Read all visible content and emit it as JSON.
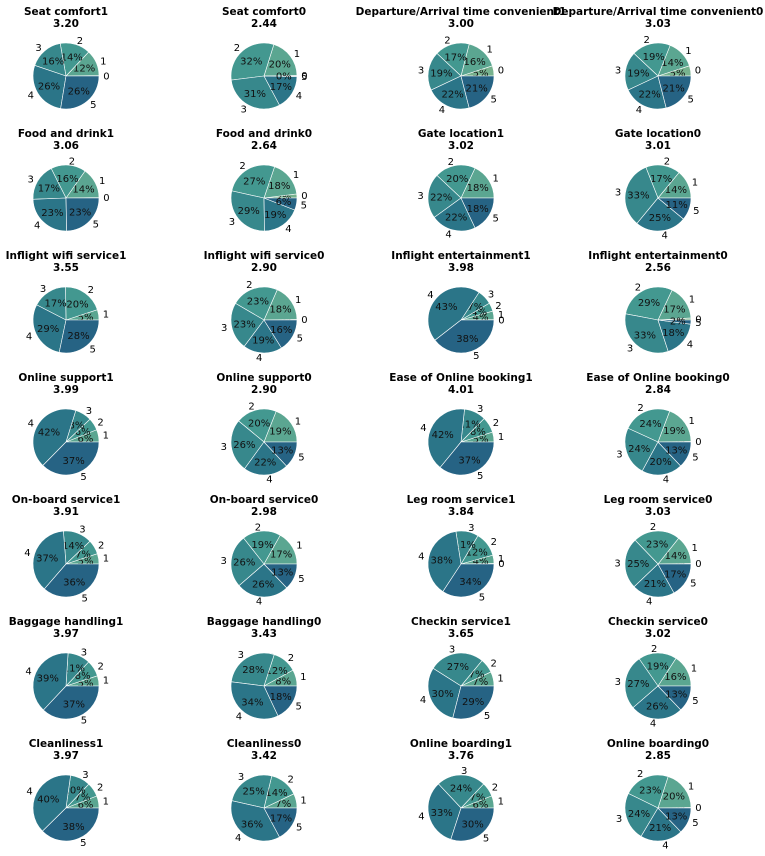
{
  "palette": [
    "#77b28e",
    "#5ba691",
    "#439890",
    "#37888c",
    "#2b7588",
    "#266384",
    "#244f7e"
  ],
  "category_order": [
    "0",
    "1",
    "2",
    "3",
    "4",
    "5"
  ],
  "chart_data": [
    {
      "type": "pie",
      "title": "Seat comfort1",
      "subtitle": "3.20",
      "labels": [
        "0",
        "1",
        "2",
        "3",
        "4",
        "5"
      ],
      "values": [
        0.2,
        12,
        14,
        16,
        26,
        26
      ],
      "pct_labels": [
        "",
        "12%",
        "14%",
        "16%",
        "26%",
        "26%"
      ]
    },
    {
      "type": "pie",
      "title": "Seat comfort0",
      "subtitle": "2.44",
      "labels": [
        "0",
        "1",
        "2",
        "3",
        "4",
        "5"
      ],
      "values": [
        0.3,
        20,
        32,
        31,
        17,
        0.3
      ],
      "pct_labels": [
        "0%",
        "20%",
        "32%",
        "31%",
        "17%",
        "0%"
      ]
    },
    {
      "type": "pie",
      "title": "Departure/Arrival time convenient1",
      "subtitle": "3.00",
      "labels": [
        "0",
        "1",
        "2",
        "3",
        "4",
        "5"
      ],
      "values": [
        5,
        16,
        17,
        19,
        22,
        21
      ],
      "pct_labels": [
        "5%",
        "16%",
        "17%",
        "19%",
        "22%",
        "21%"
      ]
    },
    {
      "type": "pie",
      "title": "Departure/Arrival time convenient0",
      "subtitle": "3.03",
      "labels": [
        "0",
        "1",
        "2",
        "3",
        "4",
        "5"
      ],
      "values": [
        5,
        14,
        19,
        19,
        22,
        21
      ],
      "pct_labels": [
        "5%",
        "14%",
        "19%",
        "19%",
        "22%",
        "21%"
      ]
    },
    {
      "type": "pie",
      "title": "Food and drink1",
      "subtitle": "3.06",
      "labels": [
        "0",
        "1",
        "2",
        "3",
        "4",
        "5"
      ],
      "values": [
        0.2,
        14,
        16,
        17,
        23,
        23
      ],
      "pct_labels": [
        "",
        "14%",
        "16%",
        "17%",
        "23%",
        "23%"
      ]
    },
    {
      "type": "pie",
      "title": "Food and drink0",
      "subtitle": "2.64",
      "labels": [
        "0",
        "1",
        "2",
        "3",
        "4",
        "5"
      ],
      "values": [
        2,
        18,
        27,
        29,
        19,
        6
      ],
      "pct_labels": [
        "2%",
        "18%",
        "27%",
        "29%",
        "19%",
        "6%"
      ]
    },
    {
      "type": "pie",
      "title": "Gate location1",
      "subtitle": "3.02",
      "labels": [
        "1",
        "2",
        "3",
        "4",
        "5"
      ],
      "values": [
        18,
        20,
        22,
        22,
        18
      ],
      "pct_labels": [
        "18%",
        "20%",
        "22%",
        "22%",
        "18%"
      ]
    },
    {
      "type": "pie",
      "title": "Gate location0",
      "subtitle": "3.01",
      "labels": [
        "1",
        "2",
        "3",
        "4",
        "5"
      ],
      "values": [
        14,
        17,
        33,
        25,
        11
      ],
      "pct_labels": [
        "14%",
        "17%",
        "33%",
        "25%",
        "11%"
      ]
    },
    {
      "type": "pie",
      "title": "Inflight wifi service1",
      "subtitle": "3.55",
      "labels": [
        "1",
        "2",
        "3",
        "4",
        "5"
      ],
      "values": [
        5,
        20,
        17,
        29,
        28
      ],
      "pct_labels": [
        "5%",
        "20%",
        "17%",
        "29%",
        "28%"
      ]
    },
    {
      "type": "pie",
      "title": "Inflight wifi service0",
      "subtitle": "2.90",
      "labels": [
        "0",
        "1",
        "2",
        "3",
        "4",
        "5"
      ],
      "values": [
        0.3,
        18,
        23,
        23,
        19,
        16
      ],
      "pct_labels": [
        "0%",
        "18%",
        "23%",
        "23%",
        "19%",
        "16%"
      ]
    },
    {
      "type": "pie",
      "title": "Inflight entertainment1",
      "subtitle": "3.98",
      "labels": [
        "0",
        "1",
        "2",
        "3",
        "4",
        "5"
      ],
      "values": [
        0.2,
        4,
        4,
        7,
        43,
        38
      ],
      "pct_labels": [
        "",
        "4%",
        "4%",
        "7%",
        "43%",
        "38%"
      ]
    },
    {
      "type": "pie",
      "title": "Inflight entertainment0",
      "subtitle": "2.56",
      "labels": [
        "0",
        "1",
        "2",
        "3",
        "4",
        "5"
      ],
      "values": [
        1,
        17,
        29,
        33,
        18,
        2
      ],
      "pct_labels": [
        "1%",
        "17%",
        "29%",
        "33%",
        "18%",
        "2%"
      ]
    },
    {
      "type": "pie",
      "title": "Online support1",
      "subtitle": "3.99",
      "labels": [
        "1",
        "2",
        "3",
        "4",
        "5"
      ],
      "values": [
        6,
        6,
        8,
        42,
        37
      ],
      "pct_labels": [
        "6%",
        "6%",
        "8%",
        "42%",
        "37%"
      ]
    },
    {
      "type": "pie",
      "title": "Online support0",
      "subtitle": "2.90",
      "labels": [
        "1",
        "2",
        "3",
        "4",
        "5"
      ],
      "values": [
        19,
        20,
        26,
        22,
        13
      ],
      "pct_labels": [
        "19%",
        "20%",
        "26%",
        "22%",
        "13%"
      ]
    },
    {
      "type": "pie",
      "title": "Ease of Online booking1",
      "subtitle": "4.01",
      "labels": [
        "1",
        "2",
        "3",
        "4",
        "5"
      ],
      "values": [
        5,
        8,
        11,
        42,
        37
      ],
      "pct_labels": [
        "5%",
        "8%",
        "11%",
        "42%",
        "37%"
      ]
    },
    {
      "type": "pie",
      "title": "Ease of Online booking0",
      "subtitle": "2.84",
      "labels": [
        "0",
        "1",
        "2",
        "3",
        "4",
        "5"
      ],
      "values": [
        0.3,
        19,
        24,
        24,
        20,
        13
      ],
      "pct_labels": [
        "0%",
        "19%",
        "24%",
        "24%",
        "20%",
        "13%"
      ]
    },
    {
      "type": "pie",
      "title": "On-board service1",
      "subtitle": "3.91",
      "labels": [
        "1",
        "2",
        "3",
        "4",
        "5"
      ],
      "values": [
        5,
        7,
        14,
        37,
        36
      ],
      "pct_labels": [
        "5%",
        "7%",
        "14%",
        "37%",
        "36%"
      ]
    },
    {
      "type": "pie",
      "title": "On-board service0",
      "subtitle": "2.98",
      "labels": [
        "1",
        "2",
        "3",
        "4",
        "5"
      ],
      "values": [
        17,
        19,
        26,
        26,
        13
      ],
      "pct_labels": [
        "17%",
        "19%",
        "26%",
        "26%",
        "13%"
      ]
    },
    {
      "type": "pie",
      "title": "Leg room service1",
      "subtitle": "3.84",
      "labels": [
        "0",
        "1",
        "2",
        "3",
        "4",
        "5"
      ],
      "values": [
        0.3,
        4,
        12,
        11,
        38,
        34
      ],
      "pct_labels": [
        "",
        "4%",
        "12%",
        "11%",
        "38%",
        "34%"
      ]
    },
    {
      "type": "pie",
      "title": "Leg room service0",
      "subtitle": "3.03",
      "labels": [
        "0",
        "1",
        "2",
        "3",
        "4",
        "5"
      ],
      "values": [
        0.3,
        14,
        23,
        25,
        21,
        17
      ],
      "pct_labels": [
        "0%",
        "14%",
        "23%",
        "25%",
        "21%",
        "17%"
      ]
    },
    {
      "type": "pie",
      "title": "Baggage handling1",
      "subtitle": "3.97",
      "labels": [
        "1",
        "2",
        "3",
        "4",
        "5"
      ],
      "values": [
        5,
        8,
        11,
        39,
        37
      ],
      "pct_labels": [
        "5%",
        "8%",
        "11%",
        "39%",
        "37%"
      ]
    },
    {
      "type": "pie",
      "title": "Baggage handling0",
      "subtitle": "3.43",
      "labels": [
        "1",
        "2",
        "3",
        "4",
        "5"
      ],
      "values": [
        8,
        12,
        28,
        34,
        18
      ],
      "pct_labels": [
        "8%",
        "12%",
        "28%",
        "34%",
        "18%"
      ]
    },
    {
      "type": "pie",
      "title": "Checkin service1",
      "subtitle": "3.65",
      "labels": [
        "1",
        "2",
        "3",
        "4",
        "5"
      ],
      "values": [
        7,
        7,
        27,
        30,
        29
      ],
      "pct_labels": [
        "7%",
        "7%",
        "27%",
        "30%",
        "29%"
      ]
    },
    {
      "type": "pie",
      "title": "Checkin service0",
      "subtitle": "3.02",
      "labels": [
        "1",
        "2",
        "3",
        "4",
        "5"
      ],
      "values": [
        16,
        19,
        27,
        26,
        13
      ],
      "pct_labels": [
        "16%",
        "19%",
        "27%",
        "26%",
        "13%"
      ]
    },
    {
      "type": "pie",
      "title": "Cleanliness1",
      "subtitle": "3.97",
      "labels": [
        "1",
        "2",
        "3",
        "4",
        "5"
      ],
      "values": [
        6,
        7,
        10,
        40,
        38
      ],
      "pct_labels": [
        "6%",
        "7%",
        "10%",
        "40%",
        "38%"
      ]
    },
    {
      "type": "pie",
      "title": "Cleanliness0",
      "subtitle": "3.42",
      "labels": [
        "1",
        "2",
        "3",
        "4",
        "5"
      ],
      "values": [
        7,
        14,
        25,
        36,
        17
      ],
      "pct_labels": [
        "7%",
        "14%",
        "25%",
        "36%",
        "17%"
      ]
    },
    {
      "type": "pie",
      "title": "Online boarding1",
      "subtitle": "3.76",
      "labels": [
        "1",
        "2",
        "3",
        "4",
        "5"
      ],
      "values": [
        6,
        7,
        24,
        33,
        30
      ],
      "pct_labels": [
        "6%",
        "7%",
        "24%",
        "33%",
        "30%"
      ]
    },
    {
      "type": "pie",
      "title": "Online boarding0",
      "subtitle": "2.85",
      "labels": [
        "0",
        "1",
        "2",
        "3",
        "4",
        "5"
      ],
      "values": [
        0.3,
        20,
        23,
        24,
        21,
        13
      ],
      "pct_labels": [
        "0%",
        "20%",
        "23%",
        "24%",
        "21%",
        "13%"
      ]
    }
  ]
}
